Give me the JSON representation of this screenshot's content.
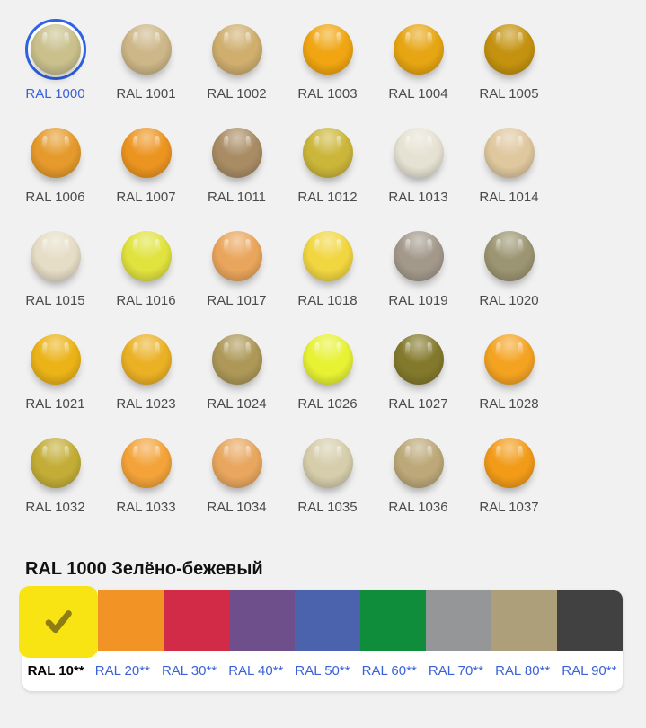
{
  "page": {
    "background": "#f1f1f1"
  },
  "grid": {
    "items": [
      {
        "code": "RAL 1000",
        "color": "#C9C08C",
        "selected": true
      },
      {
        "code": "RAL 1001",
        "color": "#CDB687",
        "selected": false
      },
      {
        "code": "RAL 1002",
        "color": "#CFAE6E",
        "selected": false
      },
      {
        "code": "RAL 1003",
        "color": "#F0A511",
        "selected": false
      },
      {
        "code": "RAL 1004",
        "color": "#E6A512",
        "selected": false
      },
      {
        "code": "RAL 1005",
        "color": "#C4920F",
        "selected": false
      },
      {
        "code": "RAL 1006",
        "color": "#E59A2B",
        "selected": false
      },
      {
        "code": "RAL 1007",
        "color": "#EC9420",
        "selected": false
      },
      {
        "code": "RAL 1011",
        "color": "#A98C64",
        "selected": false
      },
      {
        "code": "RAL 1012",
        "color": "#CBB63A",
        "selected": false
      },
      {
        "code": "RAL 1013",
        "color": "#E6E2D3",
        "selected": false
      },
      {
        "code": "RAL 1014",
        "color": "#DFC79E",
        "selected": false
      },
      {
        "code": "RAL 1015",
        "color": "#E6DDC6",
        "selected": false
      },
      {
        "code": "RAL 1016",
        "color": "#E0E23E",
        "selected": false
      },
      {
        "code": "RAL 1017",
        "color": "#E9A55B",
        "selected": false
      },
      {
        "code": "RAL 1018",
        "color": "#F1D63F",
        "selected": false
      },
      {
        "code": "RAL 1019",
        "color": "#A3998B",
        "selected": false
      },
      {
        "code": "RAL 1020",
        "color": "#9C9572",
        "selected": false
      },
      {
        "code": "RAL 1021",
        "color": "#EBB317",
        "selected": false
      },
      {
        "code": "RAL 1023",
        "color": "#EBB125",
        "selected": false
      },
      {
        "code": "RAL 1024",
        "color": "#AD9858",
        "selected": false
      },
      {
        "code": "RAL 1026",
        "color": "#E7F233",
        "selected": false
      },
      {
        "code": "RAL 1027",
        "color": "#83792C",
        "selected": false
      },
      {
        "code": "RAL 1028",
        "color": "#F4A321",
        "selected": false
      },
      {
        "code": "RAL 1032",
        "color": "#C3AD36",
        "selected": false
      },
      {
        "code": "RAL 1033",
        "color": "#F3A339",
        "selected": false
      },
      {
        "code": "RAL 1034",
        "color": "#E8A65E",
        "selected": false
      },
      {
        "code": "RAL 1035",
        "color": "#D6CDAB",
        "selected": false
      },
      {
        "code": "RAL 1036",
        "color": "#BCA878",
        "selected": false
      },
      {
        "code": "RAL 1037",
        "color": "#F29B18",
        "selected": false
      }
    ]
  },
  "detail": {
    "heading": "RAL 1000 Зелёно-бежевый"
  },
  "categories": {
    "items": [
      {
        "label": "RAL 10**",
        "color": "#F8E412",
        "selected": true
      },
      {
        "label": "RAL 20**",
        "color": "#F29325",
        "selected": false
      },
      {
        "label": "RAL 30**",
        "color": "#D22B47",
        "selected": false
      },
      {
        "label": "RAL 40**",
        "color": "#6F4E8C",
        "selected": false
      },
      {
        "label": "RAL 50**",
        "color": "#4B63AD",
        "selected": false
      },
      {
        "label": "RAL 60**",
        "color": "#108D3B",
        "selected": false
      },
      {
        "label": "RAL 70**",
        "color": "#959697",
        "selected": false
      },
      {
        "label": "RAL 80**",
        "color": "#AC9F79",
        "selected": false
      },
      {
        "label": "RAL 90**",
        "color": "#414141",
        "selected": false
      }
    ],
    "checkmark_icon": "checkmark"
  },
  "colors": {
    "link": "#3a62d8",
    "selected_ring": "#2e63e2",
    "label_text": "#4a4a4a",
    "checkmark": "#8e7d12",
    "background": "#f1f1f1"
  }
}
